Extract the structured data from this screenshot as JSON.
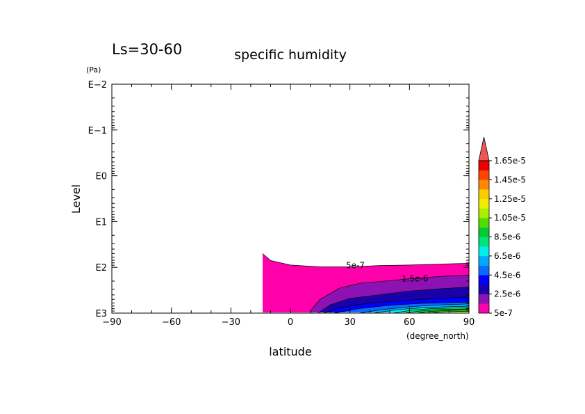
{
  "chart_data": {
    "type": "contour",
    "title": "specific humidity",
    "subtitle": "Ls=30-60",
    "xlabel": "latitude",
    "xunit": "(degree_north)",
    "ylabel": "Level",
    "yunit": "(Pa)",
    "xlim": [
      -90,
      90
    ],
    "xticks": [
      -90,
      -60,
      -30,
      0,
      30,
      60,
      90
    ],
    "yscale": "log",
    "ylim_log10": [
      3,
      -2
    ],
    "yticks": [
      {
        "log10": -2,
        "label": "E-2"
      },
      {
        "log10": -1,
        "label": "E-1"
      },
      {
        "log10": 0,
        "label": "E0"
      },
      {
        "log10": 1,
        "label": "E1"
      },
      {
        "log10": 2,
        "label": "E2"
      },
      {
        "log10": 3,
        "label": "E3"
      }
    ],
    "contour_labels": [
      "5e-7",
      "1.5e-6"
    ],
    "colorbar": {
      "labels": [
        "1.65e-5",
        "1.45e-5",
        "1.25e-5",
        "1.05e-5",
        "8.5e-6",
        "6.5e-6",
        "4.5e-6",
        "2.5e-6",
        "5e-7"
      ],
      "colors": [
        "#ff00aa",
        "#8c12b4",
        "#1a00aa",
        "#0000ff",
        "#0a6cff",
        "#00aaff",
        "#00eeee",
        "#00e27a",
        "#00cc33",
        "#55dd00",
        "#aaee00",
        "#eeee00",
        "#ffcc00",
        "#ff8800",
        "#ff4400",
        "#ee0000",
        "#ee5555"
      ]
    },
    "field": {
      "levels": [
        5e-07,
        1.5e-06,
        2.5e-06,
        3.5e-06,
        4.5e-06,
        5.5e-06,
        6.5e-06,
        7.5e-06,
        8.5e-06,
        9.5e-06,
        1.05e-05
      ],
      "boundaries": [
        [
          [
            -14,
            1.7
          ],
          [
            -10,
            1.85
          ],
          [
            0,
            1.95
          ],
          [
            15,
            1.99
          ],
          [
            30,
            1.99
          ],
          [
            45,
            1.96
          ],
          [
            60,
            1.95
          ],
          [
            75,
            1.93
          ],
          [
            90,
            1.91
          ]
        ],
        [
          [
            10,
            2.95
          ],
          [
            15,
            2.7
          ],
          [
            25,
            2.45
          ],
          [
            35,
            2.35
          ],
          [
            50,
            2.29
          ],
          [
            60,
            2.25
          ],
          [
            75,
            2.2
          ],
          [
            90,
            2.17
          ]
        ],
        [
          [
            14,
            3.0
          ],
          [
            20,
            2.82
          ],
          [
            30,
            2.68
          ],
          [
            45,
            2.6
          ],
          [
            60,
            2.52
          ],
          [
            75,
            2.47
          ],
          [
            90,
            2.43
          ]
        ],
        [
          [
            17,
            3.0
          ],
          [
            25,
            2.88
          ],
          [
            40,
            2.78
          ],
          [
            55,
            2.73
          ],
          [
            70,
            2.69
          ],
          [
            90,
            2.65
          ]
        ],
        [
          [
            22,
            3.0
          ],
          [
            35,
            2.9
          ],
          [
            50,
            2.83
          ],
          [
            65,
            2.79
          ],
          [
            90,
            2.76
          ]
        ],
        [
          [
            35,
            3.0
          ],
          [
            45,
            2.93
          ],
          [
            60,
            2.86
          ],
          [
            75,
            2.82
          ],
          [
            90,
            2.8
          ]
        ],
        [
          [
            42,
            3.0
          ],
          [
            55,
            2.92
          ],
          [
            68,
            2.88
          ],
          [
            80,
            2.86
          ],
          [
            90,
            2.85
          ]
        ],
        [
          [
            52,
            3.0
          ],
          [
            62,
            2.93
          ],
          [
            72,
            2.9
          ],
          [
            82,
            2.89
          ],
          [
            90,
            2.88
          ]
        ],
        [
          [
            58,
            3.0
          ],
          [
            66,
            2.95
          ],
          [
            76,
            2.92
          ],
          [
            90,
            2.91
          ]
        ],
        [
          [
            64,
            3.0
          ],
          [
            72,
            2.96
          ],
          [
            82,
            2.94
          ],
          [
            90,
            2.93
          ]
        ],
        [
          [
            70,
            3.0
          ],
          [
            78,
            2.97
          ],
          [
            90,
            2.96
          ]
        ]
      ]
    }
  }
}
